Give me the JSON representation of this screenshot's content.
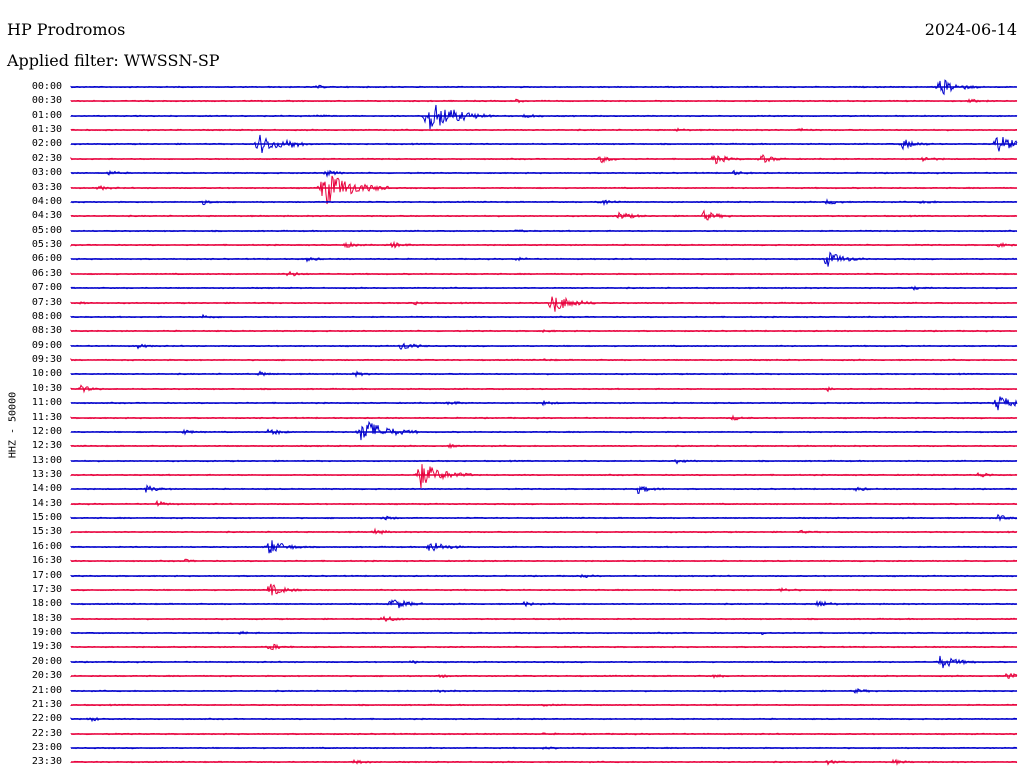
{
  "header": {
    "station": "HP Prodromos",
    "date": "2024-06-14",
    "filter": "Applied filter: WWSSN-SP"
  },
  "channel": "HHZ - 50000",
  "colors": {
    "even": "#0000cc",
    "odd": "#e8003c"
  },
  "rows": [
    {
      "time": "00:00",
      "events": [
        {
          "pos": 0.92,
          "amp": 1.2
        },
        {
          "pos": 0.26,
          "amp": 0.2
        }
      ]
    },
    {
      "time": "00:30",
      "events": [
        {
          "pos": 0.47,
          "amp": 0.2
        },
        {
          "pos": 0.95,
          "amp": 0.25
        }
      ]
    },
    {
      "time": "01:00",
      "events": [
        {
          "pos": 0.38,
          "amp": 2.3
        },
        {
          "pos": 0.26,
          "amp": 0.25
        },
        {
          "pos": 0.48,
          "amp": 0.3
        }
      ]
    },
    {
      "time": "01:30",
      "events": [
        {
          "pos": 0.64,
          "amp": 0.2
        },
        {
          "pos": 0.77,
          "amp": 0.25
        }
      ]
    },
    {
      "time": "02:00",
      "events": [
        {
          "pos": 0.2,
          "amp": 1.4
        },
        {
          "pos": 0.23,
          "amp": 0.5
        },
        {
          "pos": 0.88,
          "amp": 0.7
        },
        {
          "pos": 0.98,
          "amp": 1.3
        }
      ]
    },
    {
      "time": "02:30",
      "events": [
        {
          "pos": 0.56,
          "amp": 0.5
        },
        {
          "pos": 0.68,
          "amp": 0.7
        },
        {
          "pos": 0.73,
          "amp": 0.6
        },
        {
          "pos": 0.9,
          "amp": 0.4
        }
      ]
    },
    {
      "time": "03:00",
      "events": [
        {
          "pos": 0.04,
          "amp": 0.3
        },
        {
          "pos": 0.27,
          "amp": 0.4
        },
        {
          "pos": 0.7,
          "amp": 0.3
        }
      ]
    },
    {
      "time": "03:30",
      "events": [
        {
          "pos": 0.27,
          "amp": 2.4
        },
        {
          "pos": 0.03,
          "amp": 0.3
        }
      ]
    },
    {
      "time": "04:00",
      "events": [
        {
          "pos": 0.14,
          "amp": 0.3
        },
        {
          "pos": 0.56,
          "amp": 0.5
        },
        {
          "pos": 0.8,
          "amp": 0.4
        },
        {
          "pos": 0.9,
          "amp": 0.3
        }
      ]
    },
    {
      "time": "04:30",
      "events": [
        {
          "pos": 0.58,
          "amp": 0.6
        },
        {
          "pos": 0.67,
          "amp": 0.7
        }
      ]
    },
    {
      "time": "05:00",
      "events": [
        {
          "pos": 0.47,
          "amp": 0.2
        }
      ]
    },
    {
      "time": "05:30",
      "events": [
        {
          "pos": 0.29,
          "amp": 0.4
        },
        {
          "pos": 0.34,
          "amp": 0.4
        },
        {
          "pos": 0.98,
          "amp": 0.3
        }
      ]
    },
    {
      "time": "06:00",
      "events": [
        {
          "pos": 0.8,
          "amp": 1.1
        },
        {
          "pos": 0.25,
          "amp": 0.3
        },
        {
          "pos": 0.47,
          "amp": 0.3
        }
      ]
    },
    {
      "time": "06:30",
      "events": [
        {
          "pos": 0.23,
          "amp": 0.4
        }
      ]
    },
    {
      "time": "07:00",
      "events": [
        {
          "pos": 0.89,
          "amp": 0.3
        }
      ]
    },
    {
      "time": "07:30",
      "events": [
        {
          "pos": 0.51,
          "amp": 1.4
        },
        {
          "pos": 0.36,
          "amp": 0.3
        },
        {
          "pos": 0.01,
          "amp": 0.2
        }
      ]
    },
    {
      "time": "08:00",
      "events": [
        {
          "pos": 0.14,
          "amp": 0.3
        }
      ]
    },
    {
      "time": "08:30",
      "events": [
        {
          "pos": 0.5,
          "amp": 0.15
        }
      ]
    },
    {
      "time": "09:00",
      "events": [
        {
          "pos": 0.35,
          "amp": 0.6
        },
        {
          "pos": 0.07,
          "amp": 0.3
        }
      ]
    },
    {
      "time": "09:30",
      "events": [
        {
          "pos": 0.5,
          "amp": 0.15
        }
      ]
    },
    {
      "time": "10:00",
      "events": [
        {
          "pos": 0.2,
          "amp": 0.3
        },
        {
          "pos": 0.3,
          "amp": 0.3
        }
      ]
    },
    {
      "time": "10:30",
      "events": [
        {
          "pos": 0.01,
          "amp": 0.5
        },
        {
          "pos": 0.8,
          "amp": 0.3
        }
      ]
    },
    {
      "time": "11:00",
      "events": [
        {
          "pos": 0.98,
          "amp": 1.1
        },
        {
          "pos": 0.4,
          "amp": 0.3
        },
        {
          "pos": 0.5,
          "amp": 0.3
        }
      ]
    },
    {
      "time": "11:30",
      "events": [
        {
          "pos": 0.7,
          "amp": 0.3
        }
      ]
    },
    {
      "time": "12:00",
      "events": [
        {
          "pos": 0.31,
          "amp": 1.9
        },
        {
          "pos": 0.21,
          "amp": 0.5
        },
        {
          "pos": 0.12,
          "amp": 0.3
        }
      ]
    },
    {
      "time": "12:30",
      "events": [
        {
          "pos": 0.4,
          "amp": 0.2
        }
      ]
    },
    {
      "time": "13:00",
      "events": [
        {
          "pos": 0.64,
          "amp": 0.3
        }
      ]
    },
    {
      "time": "13:30",
      "events": [
        {
          "pos": 0.37,
          "amp": 1.8
        },
        {
          "pos": 0.96,
          "amp": 0.4
        }
      ]
    },
    {
      "time": "14:00",
      "events": [
        {
          "pos": 0.08,
          "amp": 0.5
        },
        {
          "pos": 0.6,
          "amp": 0.6
        },
        {
          "pos": 0.83,
          "amp": 0.3
        }
      ]
    },
    {
      "time": "14:30",
      "events": [
        {
          "pos": 0.09,
          "amp": 0.4
        }
      ]
    },
    {
      "time": "15:00",
      "events": [
        {
          "pos": 0.98,
          "amp": 0.4
        },
        {
          "pos": 0.33,
          "amp": 0.3
        }
      ]
    },
    {
      "time": "15:30",
      "events": [
        {
          "pos": 0.32,
          "amp": 0.4
        },
        {
          "pos": 0.77,
          "amp": 0.2
        }
      ]
    },
    {
      "time": "16:00",
      "events": [
        {
          "pos": 0.21,
          "amp": 1.1
        },
        {
          "pos": 0.38,
          "amp": 0.9
        }
      ]
    },
    {
      "time": "16:30",
      "events": [
        {
          "pos": 0.12,
          "amp": 0.2
        }
      ]
    },
    {
      "time": "17:00",
      "events": [
        {
          "pos": 0.54,
          "amp": 0.2
        }
      ]
    },
    {
      "time": "17:30",
      "events": [
        {
          "pos": 0.21,
          "amp": 0.9
        },
        {
          "pos": 0.75,
          "amp": 0.3
        }
      ]
    },
    {
      "time": "18:00",
      "events": [
        {
          "pos": 0.34,
          "amp": 0.9
        },
        {
          "pos": 0.79,
          "amp": 0.5
        },
        {
          "pos": 0.48,
          "amp": 0.3
        }
      ]
    },
    {
      "time": "18:30",
      "events": [
        {
          "pos": 0.33,
          "amp": 0.5
        }
      ]
    },
    {
      "time": "19:00",
      "events": [
        {
          "pos": 0.18,
          "amp": 0.2
        },
        {
          "pos": 0.73,
          "amp": 0.2
        }
      ]
    },
    {
      "time": "19:30",
      "events": [
        {
          "pos": 0.21,
          "amp": 0.5
        }
      ]
    },
    {
      "time": "20:00",
      "events": [
        {
          "pos": 0.92,
          "amp": 1.0
        },
        {
          "pos": 0.36,
          "amp": 0.2
        }
      ]
    },
    {
      "time": "20:30",
      "events": [
        {
          "pos": 0.99,
          "amp": 0.5
        },
        {
          "pos": 0.39,
          "amp": 0.2
        },
        {
          "pos": 0.68,
          "amp": 0.2
        }
      ]
    },
    {
      "time": "21:00",
      "events": [
        {
          "pos": 0.83,
          "amp": 0.3
        },
        {
          "pos": 0.39,
          "amp": 0.2
        }
      ]
    },
    {
      "time": "21:30",
      "events": [
        {
          "pos": 0.5,
          "amp": 0.15
        }
      ]
    },
    {
      "time": "22:00",
      "events": [
        {
          "pos": 0.02,
          "amp": 0.3
        }
      ]
    },
    {
      "time": "22:30",
      "events": [
        {
          "pos": 0.5,
          "amp": 0.15
        }
      ]
    },
    {
      "time": "23:00",
      "events": [
        {
          "pos": 0.5,
          "amp": 0.15
        }
      ]
    },
    {
      "time": "23:30",
      "events": [
        {
          "pos": 0.3,
          "amp": 0.3
        },
        {
          "pos": 0.8,
          "amp": 0.3
        },
        {
          "pos": 0.87,
          "amp": 0.3
        }
      ]
    }
  ]
}
